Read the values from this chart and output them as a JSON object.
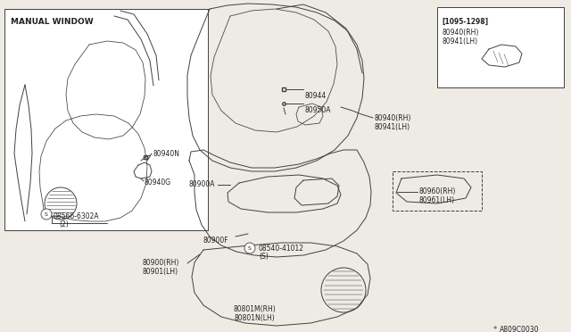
{
  "bg_color": "#eeebe5",
  "line_color": "#404040",
  "diagram_code": "A809C0030",
  "labels": {
    "manual_window": "MANUAL WINDOW",
    "l80940N": "80940N",
    "l80940G": "80940G",
    "l08566": "08566-6302A",
    "l08566b": "(2)",
    "l80900A": "80900A",
    "l80900F": "80900F",
    "l08540": "08540-41012",
    "l08540b": "(S)",
    "l80900RH": "80900(RH)",
    "l80901LH": "80901(LH)",
    "l80801M": "80801M(RH)",
    "l80801N": "80801N(LH)",
    "l80944": "80944",
    "l80950A": "80950A",
    "l80940RH_a": "80940(RH)",
    "l80941LH_a": "80941(LH)",
    "l80940RH_b": "80940(RH)",
    "l80941LH_b": "80941(LH)",
    "l80960RH": "80960(RH)",
    "l80961LH": "80961(LH)",
    "l1095": "[1095-1298]",
    "l1095b": "80940(RH)",
    "l1095c": "80941(LH)"
  },
  "font_size": 6.0,
  "line_width": 0.7,
  "white": "#ffffff",
  "box_color": "#d8d4cd"
}
